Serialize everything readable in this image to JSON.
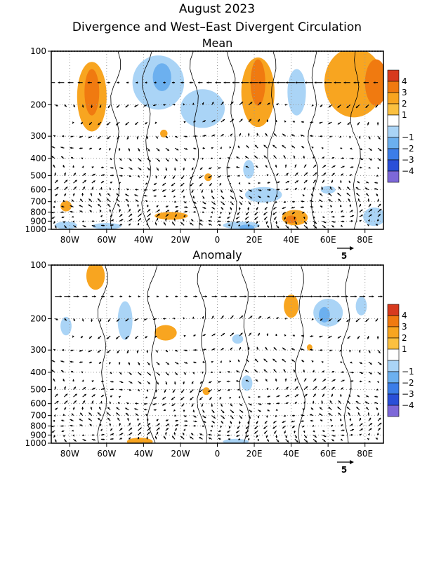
{
  "header": {
    "title": "August 2023",
    "subtitle": "Divergence and West–East Divergent Circulation"
  },
  "chart_data": [
    {
      "type": "heatmap",
      "title": "Mean",
      "x_ticks": [
        "80W",
        "60W",
        "40W",
        "20W",
        "0",
        "20E",
        "40E",
        "60E",
        "80E"
      ],
      "x_tick_lon": [
        -80,
        -60,
        -40,
        -20,
        0,
        20,
        40,
        60,
        80
      ],
      "xlim": [
        -90,
        90
      ],
      "y_ticks": [
        "100",
        "200",
        "300",
        "400",
        "500",
        "600",
        "700",
        "800",
        "900",
        "1000"
      ],
      "y_tick_p": [
        100,
        200,
        300,
        400,
        500,
        600,
        700,
        800,
        900,
        1000
      ],
      "ylim": [
        1000,
        100
      ],
      "y_scale": "log",
      "grid": "dotted",
      "vector_scale_label": "5",
      "blobs": [
        {
          "lon": -68,
          "p": 180,
          "rlon": 8,
          "rp": 0.45,
          "level": 2
        },
        {
          "lon": -68,
          "p": 170,
          "rlon": 4,
          "rp": 0.3,
          "level": 3
        },
        {
          "lon": -32,
          "p": 150,
          "rlon": 14,
          "rp": 0.35,
          "level": -1
        },
        {
          "lon": -30,
          "p": 140,
          "rlon": 5,
          "rp": 0.18,
          "level": -2
        },
        {
          "lon": -8,
          "p": 210,
          "rlon": 12,
          "rp": 0.25,
          "level": -1
        },
        {
          "lon": 22,
          "p": 170,
          "rlon": 9,
          "rp": 0.45,
          "level": 2
        },
        {
          "lon": 22,
          "p": 150,
          "rlon": 4,
          "rp": 0.3,
          "level": 3
        },
        {
          "lon": 43,
          "p": 170,
          "rlon": 5,
          "rp": 0.3,
          "level": -1
        },
        {
          "lon": 74,
          "p": 150,
          "rlon": 16,
          "rp": 0.45,
          "level": 2
        },
        {
          "lon": 86,
          "p": 150,
          "rlon": 6,
          "rp": 0.3,
          "level": 3
        },
        {
          "lon": -29,
          "p": 290,
          "rlon": 2,
          "rp": 0.05,
          "level": 2
        },
        {
          "lon": 17,
          "p": 460,
          "rlon": 3,
          "rp": 0.12,
          "level": -1
        },
        {
          "lon": -5,
          "p": 510,
          "rlon": 2,
          "rp": 0.05,
          "level": 2
        },
        {
          "lon": 25,
          "p": 640,
          "rlon": 10,
          "rp": 0.1,
          "level": -1
        },
        {
          "lon": 60,
          "p": 600,
          "rlon": 4,
          "rp": 0.05,
          "level": -1
        },
        {
          "lon": -82,
          "p": 740,
          "rlon": 3,
          "rp": 0.07,
          "level": 2
        },
        {
          "lon": -25,
          "p": 840,
          "rlon": 9,
          "rp": 0.05,
          "level": 2
        },
        {
          "lon": 42,
          "p": 860,
          "rlon": 7,
          "rp": 0.1,
          "level": 2
        },
        {
          "lon": 40,
          "p": 880,
          "rlon": 3,
          "rp": 0.05,
          "level": 3
        },
        {
          "lon": 13,
          "p": 950,
          "rlon": 10,
          "rp": 0.05,
          "level": -1
        },
        {
          "lon": 16,
          "p": 975,
          "rlon": 4,
          "rp": 0.03,
          "level": -2
        },
        {
          "lon": -82,
          "p": 950,
          "rlon": 6,
          "rp": 0.05,
          "level": -1
        },
        {
          "lon": 85,
          "p": 850,
          "rlon": 6,
          "rp": 0.12,
          "level": -1
        },
        {
          "lon": -60,
          "p": 960,
          "rlon": 8,
          "rp": 0.04,
          "level": -1
        }
      ]
    },
    {
      "type": "heatmap",
      "title": "Anomaly",
      "x_ticks": [
        "80W",
        "60W",
        "40W",
        "20W",
        "0",
        "20E",
        "40E",
        "60E",
        "80E"
      ],
      "x_tick_lon": [
        -80,
        -60,
        -40,
        -20,
        0,
        20,
        40,
        60,
        80
      ],
      "xlim": [
        -90,
        90
      ],
      "y_ticks": [
        "100",
        "200",
        "300",
        "400",
        "500",
        "600",
        "700",
        "800",
        "900",
        "1000"
      ],
      "y_tick_p": [
        100,
        200,
        300,
        400,
        500,
        600,
        700,
        800,
        900,
        1000
      ],
      "ylim": [
        1000,
        100
      ],
      "y_scale": "log",
      "grid": "dotted",
      "vector_scale_label": "5",
      "blobs": [
        {
          "lon": -66,
          "p": 115,
          "rlon": 5,
          "rp": 0.18,
          "level": 2
        },
        {
          "lon": -50,
          "p": 205,
          "rlon": 4,
          "rp": 0.25,
          "level": -1
        },
        {
          "lon": -82,
          "p": 220,
          "rlon": 3,
          "rp": 0.12,
          "level": -1
        },
        {
          "lon": -28,
          "p": 240,
          "rlon": 6,
          "rp": 0.1,
          "level": 2
        },
        {
          "lon": 11,
          "p": 260,
          "rlon": 3,
          "rp": 0.06,
          "level": -1
        },
        {
          "lon": 40,
          "p": 170,
          "rlon": 4,
          "rp": 0.15,
          "level": 2
        },
        {
          "lon": 60,
          "p": 185,
          "rlon": 8,
          "rp": 0.18,
          "level": -1
        },
        {
          "lon": 58,
          "p": 190,
          "rlon": 3,
          "rp": 0.1,
          "level": -2
        },
        {
          "lon": 78,
          "p": 170,
          "rlon": 3,
          "rp": 0.12,
          "level": -1
        },
        {
          "lon": 50,
          "p": 290,
          "rlon": 1.5,
          "rp": 0.04,
          "level": 2
        },
        {
          "lon": 16,
          "p": 460,
          "rlon": 3,
          "rp": 0.1,
          "level": -1
        },
        {
          "lon": -6,
          "p": 510,
          "rlon": 2,
          "rp": 0.05,
          "level": 2
        },
        {
          "lon": -42,
          "p": 980,
          "rlon": 7,
          "rp": 0.05,
          "level": 2
        },
        {
          "lon": 10,
          "p": 980,
          "rlon": 7,
          "rp": 0.03,
          "level": -1
        }
      ]
    }
  ],
  "colorbar": {
    "labels": [
      "4",
      "3",
      "2",
      "1",
      "−1",
      "−2",
      "−3",
      "−4"
    ],
    "colors": [
      "#d73a1e",
      "#f07a10",
      "#f8a520",
      "#fbc040",
      "#ffffff",
      "#aad4f6",
      "#6cb0ef",
      "#3c7de8",
      "#2a4fd8",
      "#7d68d8"
    ]
  }
}
